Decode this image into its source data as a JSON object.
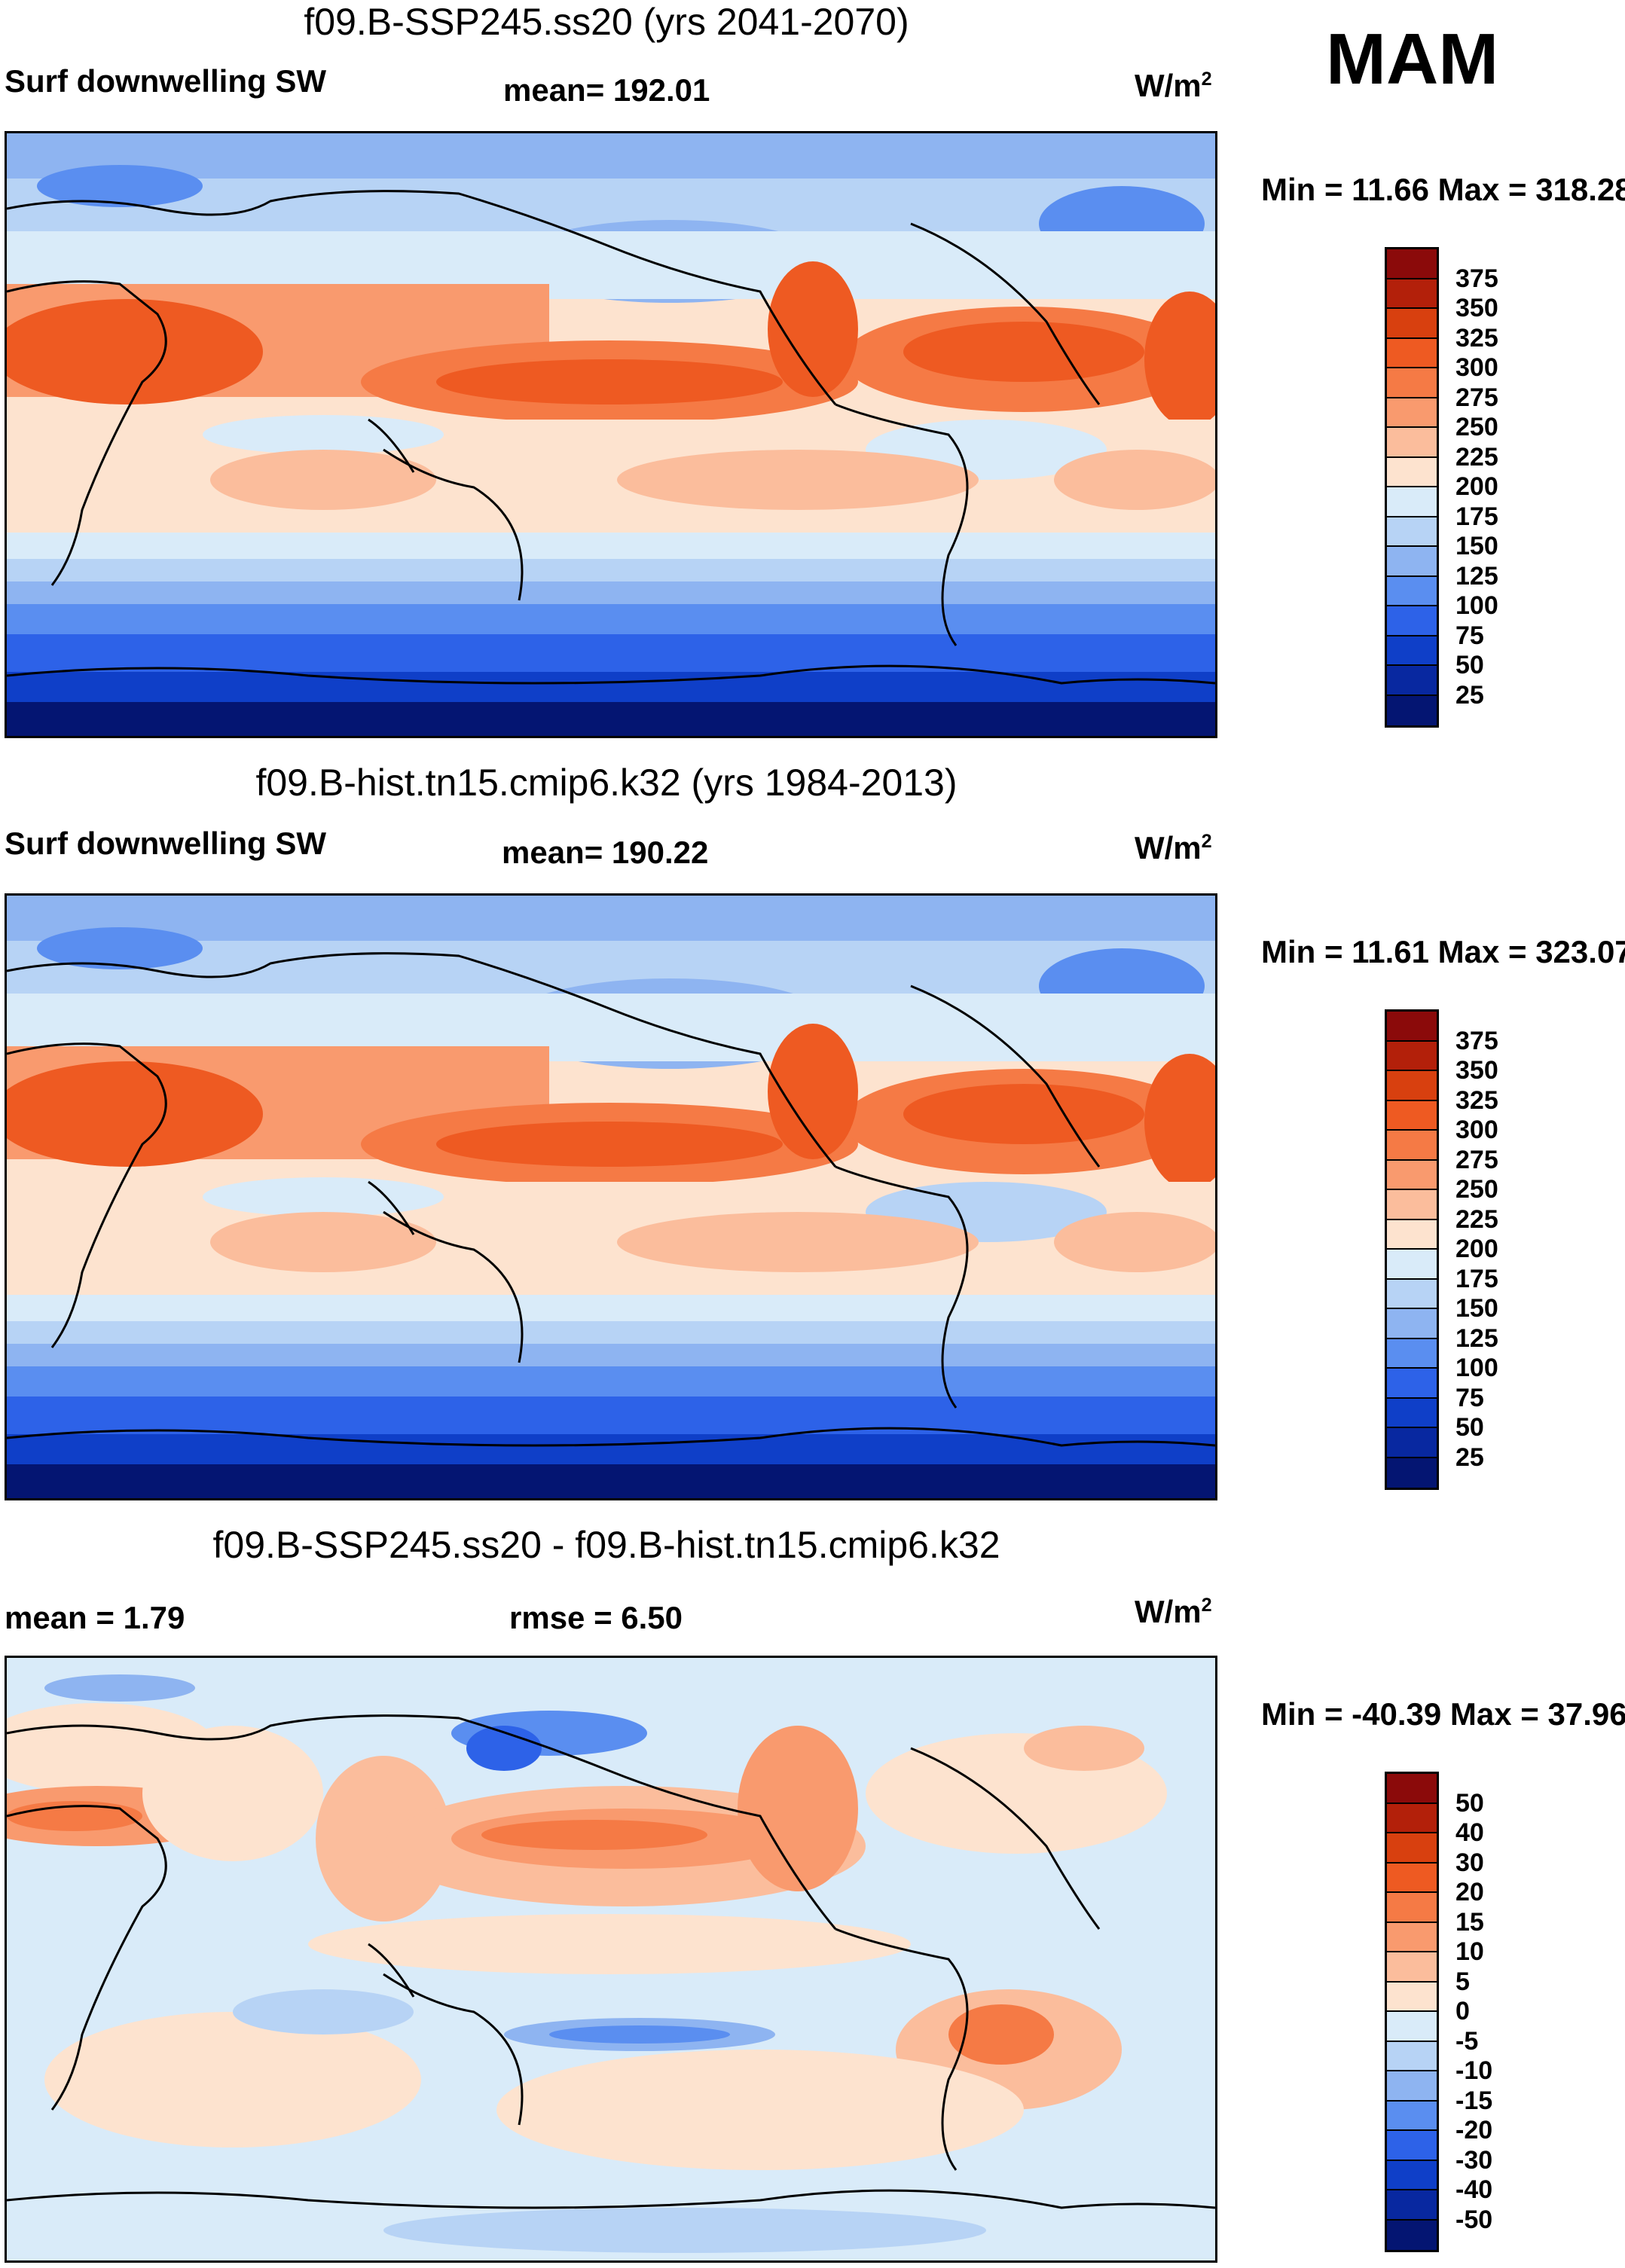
{
  "season": "MAM",
  "units": "W/m",
  "units_exp": "2",
  "panels": [
    {
      "title": "f09.B-SSP245.ss20 (yrs 2041-2070)",
      "left_label": "Surf downwelling SW",
      "center_label": "mean= 192.01",
      "minmax": "Min =  11.66 Max = 318.28"
    },
    {
      "title": "f09.B-hist.tn15.cmip6.k32 (yrs 1984-2013)",
      "left_label": "Surf downwelling SW",
      "center_label": "mean= 190.22",
      "minmax": "Min =  11.61 Max = 323.07"
    },
    {
      "title": "f09.B-SSP245.ss20 - f09.B-hist.tn15.cmip6.k32",
      "left_label": "mean =   1.79",
      "center_label": "rmse =   6.50",
      "minmax": "Min = -40.39 Max =  37.96"
    }
  ],
  "colorbars": [
    {
      "labels": [
        "375",
        "350",
        "325",
        "300",
        "275",
        "250",
        "225",
        "200",
        "175",
        "150",
        "125",
        "100",
        "75",
        "50",
        "25"
      ],
      "colors": [
        "#8b0a0a",
        "#b3200a",
        "#d8400f",
        "#ee5a22",
        "#f57a45",
        "#f99a6e",
        "#fbbd9c",
        "#fde3cf",
        "#d9ebf9",
        "#b7d3f5",
        "#8eb4f1",
        "#5a8ef0",
        "#2d62e8",
        "#0f3fc8",
        "#0828a0",
        "#041572"
      ]
    },
    {
      "labels": [
        "375",
        "350",
        "325",
        "300",
        "275",
        "250",
        "225",
        "200",
        "175",
        "150",
        "125",
        "100",
        "75",
        "50",
        "25"
      ],
      "colors": [
        "#8b0a0a",
        "#b3200a",
        "#d8400f",
        "#ee5a22",
        "#f57a45",
        "#f99a6e",
        "#fbbd9c",
        "#fde3cf",
        "#d9ebf9",
        "#b7d3f5",
        "#8eb4f1",
        "#5a8ef0",
        "#2d62e8",
        "#0f3fc8",
        "#0828a0",
        "#041572"
      ]
    },
    {
      "labels": [
        "50",
        "40",
        "30",
        "20",
        "15",
        "10",
        "5",
        "0",
        "-5",
        "-10",
        "-15",
        "-20",
        "-30",
        "-40",
        "-50"
      ],
      "colors": [
        "#8b0a0a",
        "#b3200a",
        "#d8400f",
        "#ee5a22",
        "#f57a45",
        "#f99a6e",
        "#fbbd9c",
        "#fde3cf",
        "#d9ebf9",
        "#b7d3f5",
        "#8eb4f1",
        "#5a8ef0",
        "#2d62e8",
        "#0f3fc8",
        "#0828a0",
        "#041572"
      ]
    }
  ]
}
